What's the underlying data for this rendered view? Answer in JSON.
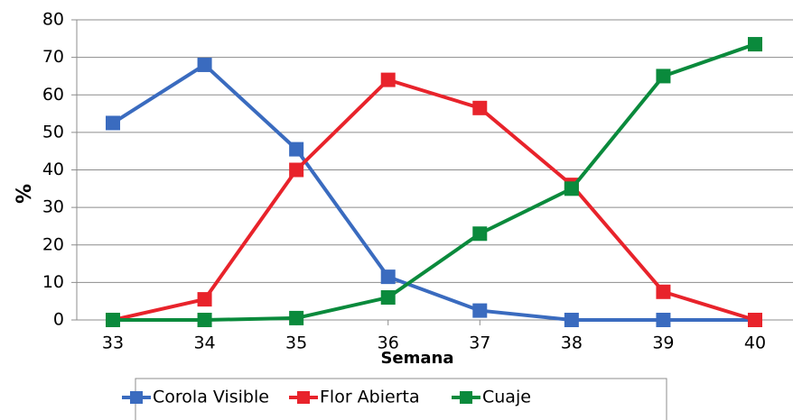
{
  "chart_data": {
    "type": "line",
    "x": [
      33,
      34,
      35,
      36,
      37,
      38,
      39,
      40
    ],
    "xlim": [
      33,
      40
    ],
    "xticks": [
      33,
      34,
      35,
      36,
      37,
      38,
      39,
      40
    ],
    "ylim": [
      0,
      80
    ],
    "yticks": [
      0,
      10,
      20,
      30,
      40,
      50,
      60,
      70,
      80
    ],
    "xlabel": "Semana",
    "ylabel": "%",
    "grid": true,
    "legend": "bottom",
    "series": [
      {
        "name": "Corola Visible",
        "color": "#3a6bbf",
        "values": [
          52.5,
          68,
          45.5,
          11.5,
          2.5,
          0,
          0,
          0
        ]
      },
      {
        "name": "Flor Abierta",
        "color": "#e8232b",
        "values": [
          0,
          5.5,
          40,
          64,
          56.5,
          36,
          7.5,
          0
        ]
      },
      {
        "name": "Cuaje",
        "color": "#0a8a3c",
        "values": [
          0,
          0,
          0.5,
          6,
          23,
          35,
          65,
          73.5
        ]
      }
    ]
  }
}
